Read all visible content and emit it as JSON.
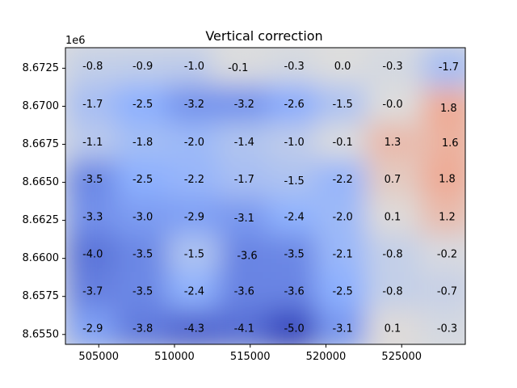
{
  "chart_data": {
    "type": "heatmap",
    "title": "Vertical correction",
    "xlabel": "",
    "ylabel": "",
    "y_offset_label": "1e6",
    "xlim": [
      502800,
      529200
    ],
    "ylim": [
      8.65435,
      8.67385
    ],
    "x_ticks": [
      505000,
      510000,
      515000,
      520000,
      525000
    ],
    "x_tick_labels": [
      "505000",
      "510000",
      "515000",
      "520000",
      "525000"
    ],
    "y_ticks": [
      8.655,
      8.6575,
      8.66,
      8.6625,
      8.665,
      8.6675,
      8.67,
      8.6725
    ],
    "y_tick_labels": [
      "8.6550",
      "8.6575",
      "8.6600",
      "8.6625",
      "8.6650",
      "8.6675",
      "8.6700",
      "8.6725"
    ],
    "colormap": "coolwarm",
    "color_range": [
      -5.0,
      5.0
    ],
    "points": [
      {
        "x": 504600,
        "y": 8.6726,
        "value": -0.8,
        "label": "-0.8"
      },
      {
        "x": 507900,
        "y": 8.6726,
        "value": -0.9,
        "label": "-0.9"
      },
      {
        "x": 511300,
        "y": 8.6726,
        "value": -1.0,
        "label": "-1.0"
      },
      {
        "x": 514200,
        "y": 8.6725,
        "value": -0.1,
        "label": "-0.1"
      },
      {
        "x": 517900,
        "y": 8.6726,
        "value": -0.3,
        "label": "-0.3"
      },
      {
        "x": 521100,
        "y": 8.6726,
        "value": 0.0,
        "label": "0.0"
      },
      {
        "x": 524400,
        "y": 8.6726,
        "value": -0.3,
        "label": "-0.3"
      },
      {
        "x": 528100,
        "y": 8.67255,
        "value": -1.7,
        "label": "-1.7"
      },
      {
        "x": 504600,
        "y": 8.6701,
        "value": -1.7,
        "label": "-1.7"
      },
      {
        "x": 507900,
        "y": 8.6701,
        "value": -2.5,
        "label": "-2.5"
      },
      {
        "x": 511300,
        "y": 8.6701,
        "value": -3.2,
        "label": "-3.2"
      },
      {
        "x": 514600,
        "y": 8.6701,
        "value": -3.2,
        "label": "-3.2"
      },
      {
        "x": 517900,
        "y": 8.6701,
        "value": -2.6,
        "label": "-2.6"
      },
      {
        "x": 521100,
        "y": 8.6701,
        "value": -1.5,
        "label": "-1.5"
      },
      {
        "x": 524400,
        "y": 8.6701,
        "value": -0.0,
        "label": "-0.0"
      },
      {
        "x": 528100,
        "y": 8.66985,
        "value": 1.8,
        "label": "1.8"
      },
      {
        "x": 504600,
        "y": 8.6676,
        "value": -1.1,
        "label": "-1.1"
      },
      {
        "x": 507900,
        "y": 8.6676,
        "value": -1.8,
        "label": "-1.8"
      },
      {
        "x": 511300,
        "y": 8.6676,
        "value": -2.0,
        "label": "-2.0"
      },
      {
        "x": 514600,
        "y": 8.6676,
        "value": -1.4,
        "label": "-1.4"
      },
      {
        "x": 517900,
        "y": 8.6676,
        "value": -1.0,
        "label": "-1.0"
      },
      {
        "x": 521100,
        "y": 8.6676,
        "value": -0.1,
        "label": "-0.1"
      },
      {
        "x": 524400,
        "y": 8.6676,
        "value": 1.3,
        "label": "1.3"
      },
      {
        "x": 528200,
        "y": 8.66755,
        "value": 1.6,
        "label": "1.6"
      },
      {
        "x": 504600,
        "y": 8.66515,
        "value": -3.5,
        "label": "-3.5"
      },
      {
        "x": 507900,
        "y": 8.66515,
        "value": -2.5,
        "label": "-2.5"
      },
      {
        "x": 511300,
        "y": 8.66515,
        "value": -2.2,
        "label": "-2.2"
      },
      {
        "x": 514600,
        "y": 8.66515,
        "value": -1.7,
        "label": "-1.7"
      },
      {
        "x": 517900,
        "y": 8.66505,
        "value": -1.5,
        "label": "-1.5"
      },
      {
        "x": 521100,
        "y": 8.66515,
        "value": -2.2,
        "label": "-2.2"
      },
      {
        "x": 524400,
        "y": 8.66515,
        "value": 0.7,
        "label": "0.7"
      },
      {
        "x": 528000,
        "y": 8.6652,
        "value": 1.8,
        "label": "1.8"
      },
      {
        "x": 504600,
        "y": 8.6627,
        "value": -3.3,
        "label": "-3.3"
      },
      {
        "x": 507900,
        "y": 8.6627,
        "value": -3.0,
        "label": "-3.0"
      },
      {
        "x": 511300,
        "y": 8.6627,
        "value": -2.9,
        "label": "-2.9"
      },
      {
        "x": 514600,
        "y": 8.6626,
        "value": -3.1,
        "label": "-3.1"
      },
      {
        "x": 517900,
        "y": 8.6627,
        "value": -2.4,
        "label": "-2.4"
      },
      {
        "x": 521100,
        "y": 8.6627,
        "value": -2.0,
        "label": "-2.0"
      },
      {
        "x": 524400,
        "y": 8.6627,
        "value": 0.1,
        "label": "0.1"
      },
      {
        "x": 528000,
        "y": 8.6627,
        "value": 1.2,
        "label": "1.2"
      },
      {
        "x": 504600,
        "y": 8.66025,
        "value": -4.0,
        "label": "-4.0"
      },
      {
        "x": 507900,
        "y": 8.66025,
        "value": -3.5,
        "label": "-3.5"
      },
      {
        "x": 511300,
        "y": 8.66025,
        "value": -1.5,
        "label": "-1.5"
      },
      {
        "x": 514800,
        "y": 8.66015,
        "value": -3.6,
        "label": "-3.6"
      },
      {
        "x": 517900,
        "y": 8.66025,
        "value": -3.5,
        "label": "-3.5"
      },
      {
        "x": 521100,
        "y": 8.66025,
        "value": -2.1,
        "label": "-2.1"
      },
      {
        "x": 524400,
        "y": 8.66025,
        "value": -0.8,
        "label": "-0.8"
      },
      {
        "x": 528000,
        "y": 8.66025,
        "value": -0.2,
        "label": "-0.2"
      },
      {
        "x": 504600,
        "y": 8.6578,
        "value": -3.7,
        "label": "-3.7"
      },
      {
        "x": 507900,
        "y": 8.6578,
        "value": -3.5,
        "label": "-3.5"
      },
      {
        "x": 511300,
        "y": 8.6578,
        "value": -2.4,
        "label": "-2.4"
      },
      {
        "x": 514600,
        "y": 8.6578,
        "value": -3.6,
        "label": "-3.6"
      },
      {
        "x": 517900,
        "y": 8.6578,
        "value": -3.6,
        "label": "-3.6"
      },
      {
        "x": 521100,
        "y": 8.6578,
        "value": -2.5,
        "label": "-2.5"
      },
      {
        "x": 524400,
        "y": 8.6578,
        "value": -0.8,
        "label": "-0.8"
      },
      {
        "x": 528000,
        "y": 8.6578,
        "value": -0.7,
        "label": "-0.7"
      },
      {
        "x": 504600,
        "y": 8.65535,
        "value": -2.9,
        "label": "-2.9"
      },
      {
        "x": 507900,
        "y": 8.65535,
        "value": -3.8,
        "label": "-3.8"
      },
      {
        "x": 511300,
        "y": 8.65535,
        "value": -4.3,
        "label": "-4.3"
      },
      {
        "x": 514600,
        "y": 8.65535,
        "value": -4.1,
        "label": "-4.1"
      },
      {
        "x": 517900,
        "y": 8.65535,
        "value": -5.0,
        "label": "-5.0"
      },
      {
        "x": 521100,
        "y": 8.65535,
        "value": -3.1,
        "label": "-3.1"
      },
      {
        "x": 524400,
        "y": 8.65535,
        "value": 0.1,
        "label": "0.1"
      },
      {
        "x": 528000,
        "y": 8.65535,
        "value": -0.3,
        "label": "-0.3"
      }
    ]
  }
}
